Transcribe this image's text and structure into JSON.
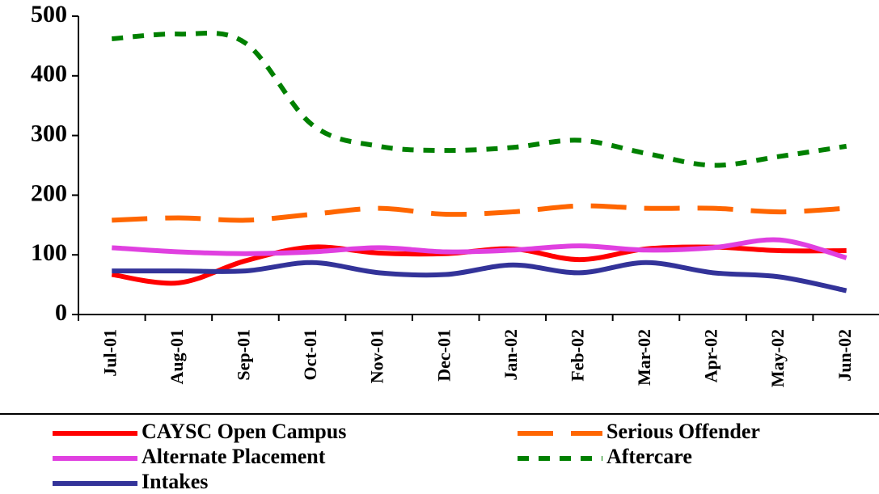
{
  "chart_data": {
    "type": "line",
    "categories": [
      "Jul-01",
      "Aug-01",
      "Sep-01",
      "Oct-01",
      "Nov-01",
      "Dec-01",
      "Jan-02",
      "Feb-02",
      "Mar-02",
      "Apr-02",
      "May-02",
      "Jun-02"
    ],
    "series": [
      {
        "name": "CAYSC Open Campus",
        "color": "#ff0000",
        "dash": "solid",
        "values": [
          67,
          53,
          90,
          113,
          103,
          102,
          110,
          92,
          110,
          113,
          107,
          107
        ]
      },
      {
        "name": "Serious Offender",
        "color": "#ff6600",
        "dash": "dashed",
        "values": [
          158,
          162,
          158,
          168,
          178,
          168,
          172,
          182,
          178,
          178,
          172,
          178
        ]
      },
      {
        "name": "Alternate Placement",
        "color": "#e040e0",
        "dash": "solid",
        "values": [
          112,
          105,
          102,
          105,
          112,
          105,
          108,
          115,
          108,
          112,
          125,
          95
        ]
      },
      {
        "name": "Aftercare",
        "color": "#008000",
        "dash": "dotted",
        "values": [
          462,
          470,
          455,
          318,
          282,
          275,
          280,
          292,
          270,
          250,
          265,
          282
        ]
      },
      {
        "name": "Intakes",
        "color": "#333399",
        "dash": "solid",
        "values": [
          73,
          73,
          73,
          87,
          70,
          67,
          83,
          70,
          87,
          70,
          63,
          40
        ]
      }
    ],
    "ylim": [
      0,
      500
    ],
    "yticks": [
      0,
      100,
      200,
      300,
      400,
      500
    ],
    "grid": false,
    "legend": "bottom"
  }
}
